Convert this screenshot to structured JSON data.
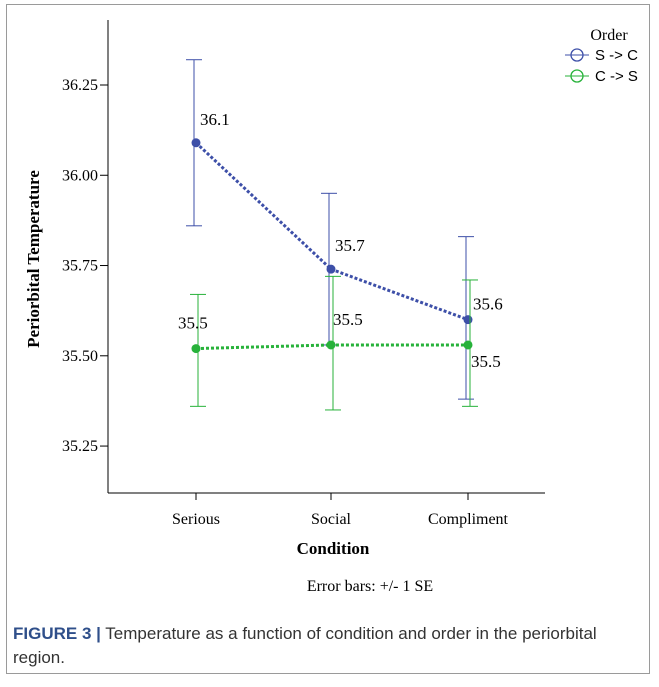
{
  "chart_data": {
    "type": "line",
    "xlabel": "Condition",
    "ylabel": "Periorbital Temperature",
    "categories": [
      "Serious",
      "Social",
      "Compliment"
    ],
    "ylim": [
      35.12,
      36.43
    ],
    "yticks": [
      "35.25",
      "35.50",
      "35.75",
      "36.00",
      "36.25"
    ],
    "yticks_values": [
      35.25,
      35.5,
      35.75,
      36.0,
      36.25
    ],
    "grid": false,
    "legend_title": "Order",
    "legend_position": "top-right",
    "footnote": "Error bars: +/- 1 SE",
    "series": [
      {
        "name": "S -> C",
        "color": "#3d4fa8",
        "values": [
          36.09,
          35.74,
          35.6
        ],
        "err_low": [
          35.86,
          35.53,
          35.38
        ],
        "err_high": [
          36.32,
          35.95,
          35.83
        ],
        "labels": [
          "36.1",
          "35.7",
          "35.6"
        ]
      },
      {
        "name": "C -> S",
        "color": "#27b23a",
        "values": [
          35.52,
          35.53,
          35.53
        ],
        "err_low": [
          35.36,
          35.35,
          35.36
        ],
        "err_high": [
          35.67,
          35.72,
          35.71
        ],
        "labels": [
          "35.5",
          "35.5",
          "35.5"
        ]
      }
    ]
  },
  "caption": {
    "label": "FIGURE 3 |",
    "text": " Temperature as a function of condition and order in the periorbital region."
  }
}
